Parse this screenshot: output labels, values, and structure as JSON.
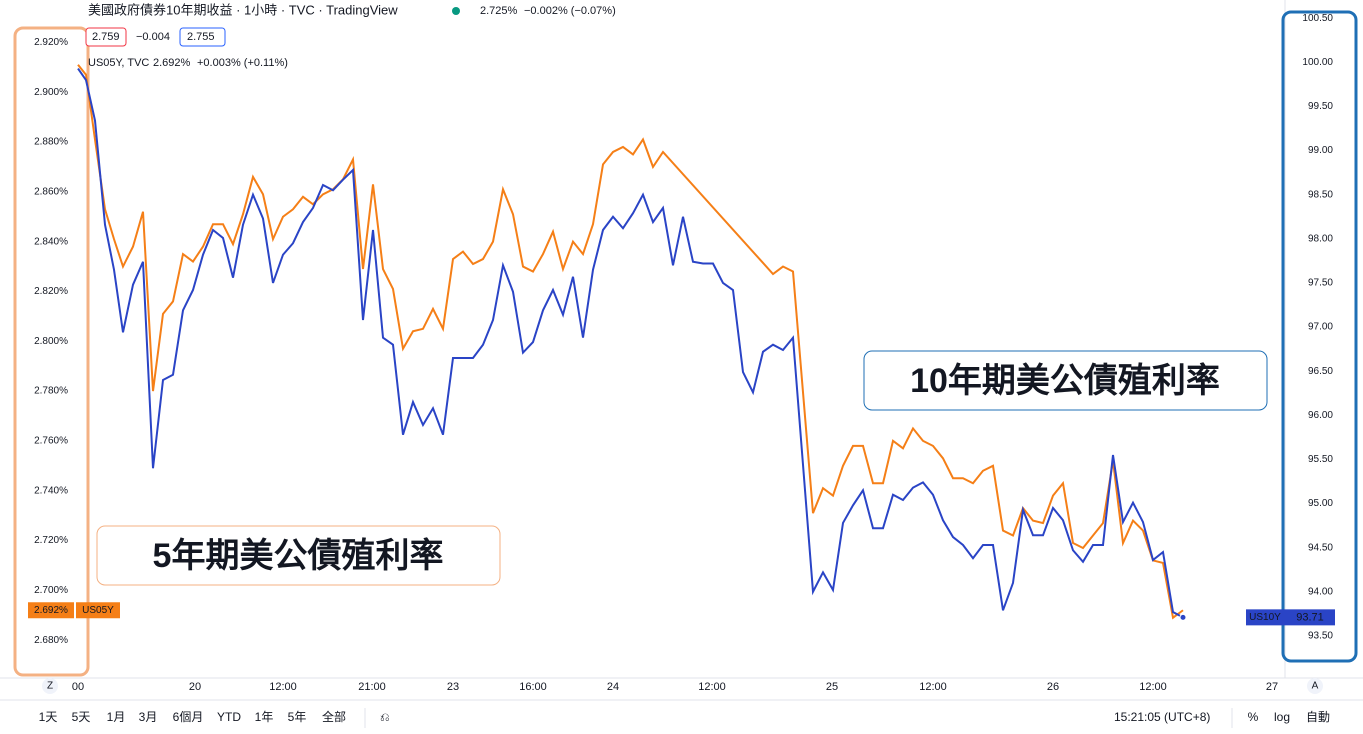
{
  "header": {
    "title": "美國政府債券10年期收益 · 1小時 · TVC · TradingView",
    "quote": "2.725%",
    "change": "−0.002% (−0.07%)",
    "bid": "2.759",
    "spread": "−0.004",
    "ask": "2.755"
  },
  "legend": {
    "name": "US05Y, TVC",
    "value": "2.692%",
    "change": "+0.003% (+0.11%)"
  },
  "chart_data": {
    "type": "line",
    "xlim": [
      0.5,
      120.5
    ],
    "xticks": [
      {
        "value": 0.5,
        "label": "00"
      },
      {
        "value": 12.2,
        "label": "20"
      },
      {
        "value": 21,
        "label": "12:00"
      },
      {
        "value": 29.9,
        "label": "21:00"
      },
      {
        "value": 38,
        "label": "23"
      },
      {
        "value": 46,
        "label": "16:00"
      },
      {
        "value": 54,
        "label": "24"
      },
      {
        "value": 63.9,
        "label": "12:00"
      },
      {
        "value": 75.9,
        "label": "25"
      },
      {
        "value": 86,
        "label": "12:00"
      },
      {
        "value": 98,
        "label": "26"
      },
      {
        "value": 108,
        "label": "12:00"
      },
      {
        "value": 119.9,
        "label": "27"
      }
    ],
    "ylim": [
      2.664,
      2.935
    ],
    "yticks": [
      {
        "value": 2.68,
        "label": "2.680%"
      },
      {
        "value": 2.7,
        "label": "2.700%"
      },
      {
        "value": 2.72,
        "label": "2.720%"
      },
      {
        "value": 2.74,
        "label": "2.740%"
      },
      {
        "value": 2.76,
        "label": "2.760%"
      },
      {
        "value": 2.78,
        "label": "2.780%"
      },
      {
        "value": 2.8,
        "label": "2.800%"
      },
      {
        "value": 2.82,
        "label": "2.820%"
      },
      {
        "value": 2.84,
        "label": "2.840%"
      },
      {
        "value": 2.86,
        "label": "2.860%"
      },
      {
        "value": 2.88,
        "label": "2.880%"
      },
      {
        "value": 2.9,
        "label": "2.900%"
      },
      {
        "value": 2.92,
        "label": "2.920%"
      }
    ],
    "y2lim": [
      93.0,
      100.65
    ],
    "y2ticks": [
      {
        "value": 93.5,
        "label": "93.50"
      },
      {
        "value": 94,
        "label": "94.00"
      },
      {
        "value": 94.5,
        "label": "94.50"
      },
      {
        "value": 95,
        "label": "95.00"
      },
      {
        "value": 95.5,
        "label": "95.50"
      },
      {
        "value": 96,
        "label": "96.00"
      },
      {
        "value": 96.5,
        "label": "96.50"
      },
      {
        "value": 97,
        "label": "97.00"
      },
      {
        "value": 97.5,
        "label": "97.50"
      },
      {
        "value": 98,
        "label": "98.00"
      },
      {
        "value": 98.5,
        "label": "98.50"
      },
      {
        "value": 99,
        "label": "99.00"
      },
      {
        "value": 99.5,
        "label": "99.50"
      },
      {
        "value": 100,
        "label": "100.00"
      },
      {
        "value": 100.5,
        "label": "100.50"
      }
    ],
    "series": [
      {
        "name": "US05Y",
        "color": "#f57f17",
        "last_label": "2.692%",
        "x": [
          0.5,
          1.3,
          2.2,
          3.2,
          4.1,
          5,
          6,
          7,
          8,
          9,
          10,
          11,
          12,
          13,
          14,
          15,
          16,
          17,
          18,
          19,
          20,
          21,
          22,
          23,
          24,
          25,
          26,
          27,
          28,
          29,
          30,
          31,
          32,
          33,
          34,
          35,
          36,
          37,
          38,
          39,
          40,
          41,
          42,
          43,
          44,
          45,
          46,
          47,
          48,
          49,
          50,
          51,
          52,
          53,
          54,
          55,
          56,
          57,
          58,
          59,
          70,
          71,
          72,
          74,
          75,
          76,
          77,
          78,
          79,
          80,
          81,
          82,
          83,
          84,
          85,
          86,
          87,
          88,
          89,
          90,
          91,
          92,
          93,
          94,
          95,
          96,
          97,
          98,
          99,
          100,
          101,
          102,
          103,
          104,
          105,
          106,
          107,
          108,
          109,
          110,
          111
        ],
        "values": [
          2.911,
          2.907,
          2.881,
          2.853,
          2.841,
          2.83,
          2.838,
          2.852,
          2.78,
          2.811,
          2.816,
          2.835,
          2.832,
          2.838,
          2.847,
          2.847,
          2.839,
          2.851,
          2.866,
          2.859,
          2.841,
          2.85,
          2.853,
          2.858,
          2.855,
          2.859,
          2.861,
          2.865,
          2.873,
          2.829,
          2.863,
          2.829,
          2.821,
          2.797,
          2.804,
          2.805,
          2.813,
          2.805,
          2.833,
          2.836,
          2.831,
          2.833,
          2.84,
          2.861,
          2.851,
          2.83,
          2.828,
          2.835,
          2.844,
          2.829,
          2.84,
          2.835,
          2.847,
          2.871,
          2.876,
          2.878,
          2.875,
          2.881,
          2.87,
          2.876,
          2.827,
          2.83,
          2.828,
          2.731,
          2.741,
          2.738,
          2.75,
          2.758,
          2.758,
          2.743,
          2.743,
          2.76,
          2.757,
          2.765,
          2.76,
          2.758,
          2.753,
          2.745,
          2.745,
          2.743,
          2.748,
          2.75,
          2.724,
          2.722,
          2.733,
          2.728,
          2.727,
          2.738,
          2.743,
          2.719,
          2.717,
          2.722,
          2.727,
          2.752,
          2.719,
          2.728,
          2.724,
          2.712,
          2.711,
          2.689,
          2.692
        ]
      },
      {
        "name": "US10Y",
        "color": "#2a44c6",
        "axis": "y2",
        "last_label": "93.71",
        "x": [
          0.5,
          1.3,
          2.2,
          3.2,
          4.1,
          5,
          6,
          7,
          8,
          9,
          10,
          11,
          12,
          13,
          14,
          15,
          16,
          17,
          18,
          19,
          20,
          21,
          22,
          23,
          24,
          25,
          26,
          27,
          28,
          29,
          30,
          31,
          32,
          33,
          34,
          35,
          36,
          37,
          38,
          39,
          40,
          41,
          42,
          43,
          44,
          45,
          46,
          47,
          48,
          49,
          50,
          51,
          52,
          53,
          54,
          55,
          56,
          57,
          58,
          59,
          60,
          61,
          62,
          63,
          64,
          65,
          66,
          67,
          68,
          69,
          70,
          71,
          72,
          74,
          75,
          76,
          77,
          78,
          79,
          80,
          81,
          82,
          83,
          84,
          85,
          86,
          87,
          88,
          89,
          90,
          91,
          92,
          93,
          94,
          95,
          96,
          97,
          98,
          99,
          100,
          101,
          102,
          103,
          104,
          105,
          106,
          107,
          108,
          109,
          110,
          111
        ],
        "values": [
          99.93,
          99.8,
          99.34,
          98.16,
          97.65,
          96.94,
          97.48,
          97.74,
          95.4,
          96.4,
          96.46,
          97.19,
          97.42,
          97.82,
          98.1,
          98.01,
          97.56,
          98.16,
          98.5,
          98.23,
          97.5,
          97.82,
          97.95,
          98.19,
          98.35,
          98.61,
          98.55,
          98.67,
          98.78,
          97.08,
          98.1,
          96.88,
          96.8,
          95.78,
          96.15,
          95.89,
          96.08,
          95.78,
          96.65,
          96.65,
          96.65,
          96.8,
          97.08,
          97.7,
          97.4,
          96.71,
          96.83,
          97.19,
          97.42,
          97.14,
          97.57,
          96.88,
          97.65,
          98.1,
          98.25,
          98.12,
          98.29,
          98.5,
          98.19,
          98.35,
          97.7,
          98.25,
          97.74,
          97.72,
          97.72,
          97.5,
          97.42,
          96.49,
          96.26,
          96.72,
          96.8,
          96.74,
          96.88,
          94.0,
          94.22,
          94.02,
          94.78,
          94.98,
          95.15,
          94.72,
          94.72,
          95.1,
          95.04,
          95.18,
          95.24,
          95.1,
          94.81,
          94.62,
          94.53,
          94.38,
          94.53,
          94.53,
          93.79,
          94.1,
          94.93,
          94.64,
          94.64,
          94.95,
          94.81,
          94.47,
          94.34,
          94.53,
          94.53,
          95.55,
          94.79,
          95.01,
          94.79,
          94.36,
          94.45,
          93.77,
          93.71
        ]
      }
    ],
    "annotations": [
      "10年期美公債殖利率",
      "5年期美公債殖利率"
    ],
    "corner_buttons": [
      "Z",
      "A"
    ]
  },
  "toolbar": {
    "ranges": [
      "1天",
      "5天",
      "1月",
      "3月",
      "6個月",
      "YTD",
      "1年",
      "5年",
      "全部"
    ],
    "time": "15:21:05 (UTC+8)",
    "options": [
      "%",
      "log",
      "自動"
    ]
  }
}
